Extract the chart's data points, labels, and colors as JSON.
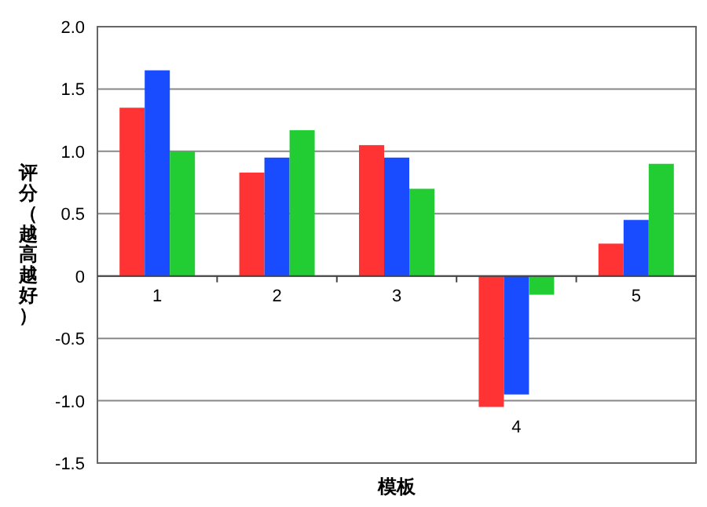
{
  "chart_data": {
    "type": "bar",
    "xlabel": "模板",
    "ylabel": "评分（越高越好）",
    "categories": [
      "1",
      "2",
      "3",
      "4",
      "5"
    ],
    "series": [
      {
        "color": "#ff3333",
        "values": [
          1.35,
          0.83,
          1.05,
          -1.05,
          0.26
        ]
      },
      {
        "color": "#1a4cff",
        "values": [
          1.65,
          0.95,
          0.95,
          -0.95,
          0.45
        ]
      },
      {
        "color": "#22cc33",
        "values": [
          1.0,
          1.17,
          0.7,
          -0.15,
          0.9
        ]
      }
    ],
    "ylim": [
      -1.5,
      2.0
    ],
    "yticks": [
      {
        "value": -1.5,
        "label": "-1.5"
      },
      {
        "value": -1.0,
        "label": "-1.0"
      },
      {
        "value": -0.5,
        "label": "-0.5"
      },
      {
        "value": 0,
        "label": "0"
      },
      {
        "value": 0.5,
        "label": "0.5"
      },
      {
        "value": 1.0,
        "label": "1.0"
      },
      {
        "value": 1.5,
        "label": "1.5"
      },
      {
        "value": 2.0,
        "label": "2.0"
      }
    ],
    "grid": "y"
  }
}
